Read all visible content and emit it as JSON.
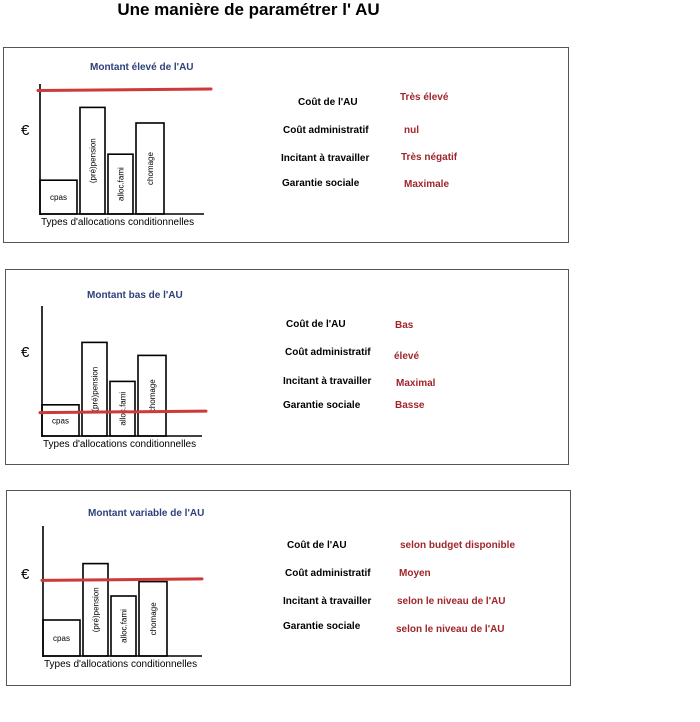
{
  "title": "Une manière de paramétrer l' AU",
  "colors": {
    "reference_line": "#cc3a3a",
    "value_text": "#a0262b",
    "panel_title": "#2e3f7a"
  },
  "panels": [
    {
      "heading": "Montant élevé de l'AU",
      "euro_symbol": "€",
      "axis_label": "Types d'allocations conditionnelles",
      "bars": [
        {
          "label": "cpas",
          "level": 0.26
        },
        {
          "label": "(pré)pension",
          "level": 0.82
        },
        {
          "label": "alloc.fami",
          "level": 0.46
        },
        {
          "label": "chomage",
          "level": 0.7
        }
      ],
      "au_level": 0.95,
      "rows": [
        {
          "label": "Coût de l'AU",
          "value": "Très élevé"
        },
        {
          "label": "Coût administratif",
          "value": "nul"
        },
        {
          "label": "Incitant à travailler",
          "value": "Très négatif"
        },
        {
          "label": "Garantie sociale",
          "value": "Maximale"
        }
      ]
    },
    {
      "heading": "Montant bas de l'AU",
      "euro_symbol": "€",
      "axis_label": "Types d'allocations conditionnelles",
      "bars": [
        {
          "label": "cpas",
          "level": 0.24
        },
        {
          "label": "(pré)pension",
          "level": 0.72
        },
        {
          "label": "alloc.fami",
          "level": 0.42
        },
        {
          "label": "chomage",
          "level": 0.62
        }
      ],
      "au_level": 0.18,
      "rows": [
        {
          "label": "Coût de l'AU",
          "value": "Bas"
        },
        {
          "label": "Coût administratif",
          "value": "élevé"
        },
        {
          "label": "Incitant à travailler",
          "value": "Maximal"
        },
        {
          "label": "Garantie sociale",
          "value": "Basse"
        }
      ]
    },
    {
      "heading": "Montant variable de l'AU",
      "euro_symbol": "€",
      "axis_label": "Types d'allocations conditionnelles",
      "bars": [
        {
          "label": "cpas",
          "level": 0.3
        },
        {
          "label": "(pré)pension",
          "level": 0.77
        },
        {
          "label": "alloc.fami",
          "level": 0.5
        },
        {
          "label": "chomage",
          "level": 0.62
        }
      ],
      "au_level": 0.63,
      "rows": [
        {
          "label": "Coût de l'AU",
          "value": "selon budget disponible"
        },
        {
          "label": "Coût administratif",
          "value": "Moyen"
        },
        {
          "label": "Incitant à travailler",
          "value": "selon le niveau de l'AU"
        },
        {
          "label": "Garantie sociale",
          "value": "selon le niveau de l'AU"
        }
      ]
    }
  ]
}
